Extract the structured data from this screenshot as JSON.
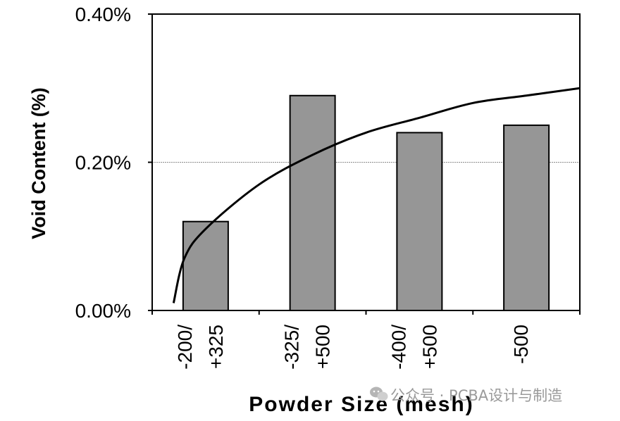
{
  "chart_data": {
    "type": "bar",
    "title": "",
    "xlabel": "Powder Size (mesh)",
    "ylabel": "Void Content (%)",
    "categories": [
      [
        "-200/",
        "+325"
      ],
      [
        "-325/",
        "+500"
      ],
      [
        "-400/",
        "+500"
      ],
      [
        "-500"
      ]
    ],
    "values": [
      0.0012,
      0.0029,
      0.0024,
      0.0025
    ],
    "ylim": [
      0,
      0.004
    ],
    "yticks": [
      {
        "value": 0,
        "label": "0.00%"
      },
      {
        "value": 0.002,
        "label": "0.20%"
      },
      {
        "value": 0.004,
        "label": "0.40%"
      }
    ],
    "grid": "horizontal at 0.20%",
    "bar_color": "#969696",
    "trendline": {
      "type": "logarithmic",
      "points": [
        [
          -0.3,
          0.0001
        ],
        [
          -0.2,
          0.0007
        ],
        [
          0,
          0.0011
        ],
        [
          0.5,
          0.0017
        ],
        [
          1,
          0.0021
        ],
        [
          1.5,
          0.0024
        ],
        [
          2,
          0.0026
        ],
        [
          2.5,
          0.0028
        ],
        [
          3,
          0.0029
        ],
        [
          3.5,
          0.003
        ]
      ]
    }
  },
  "watermark": {
    "icon": "wechat-icon",
    "text": "公众号 · PCBA设计与制造"
  }
}
